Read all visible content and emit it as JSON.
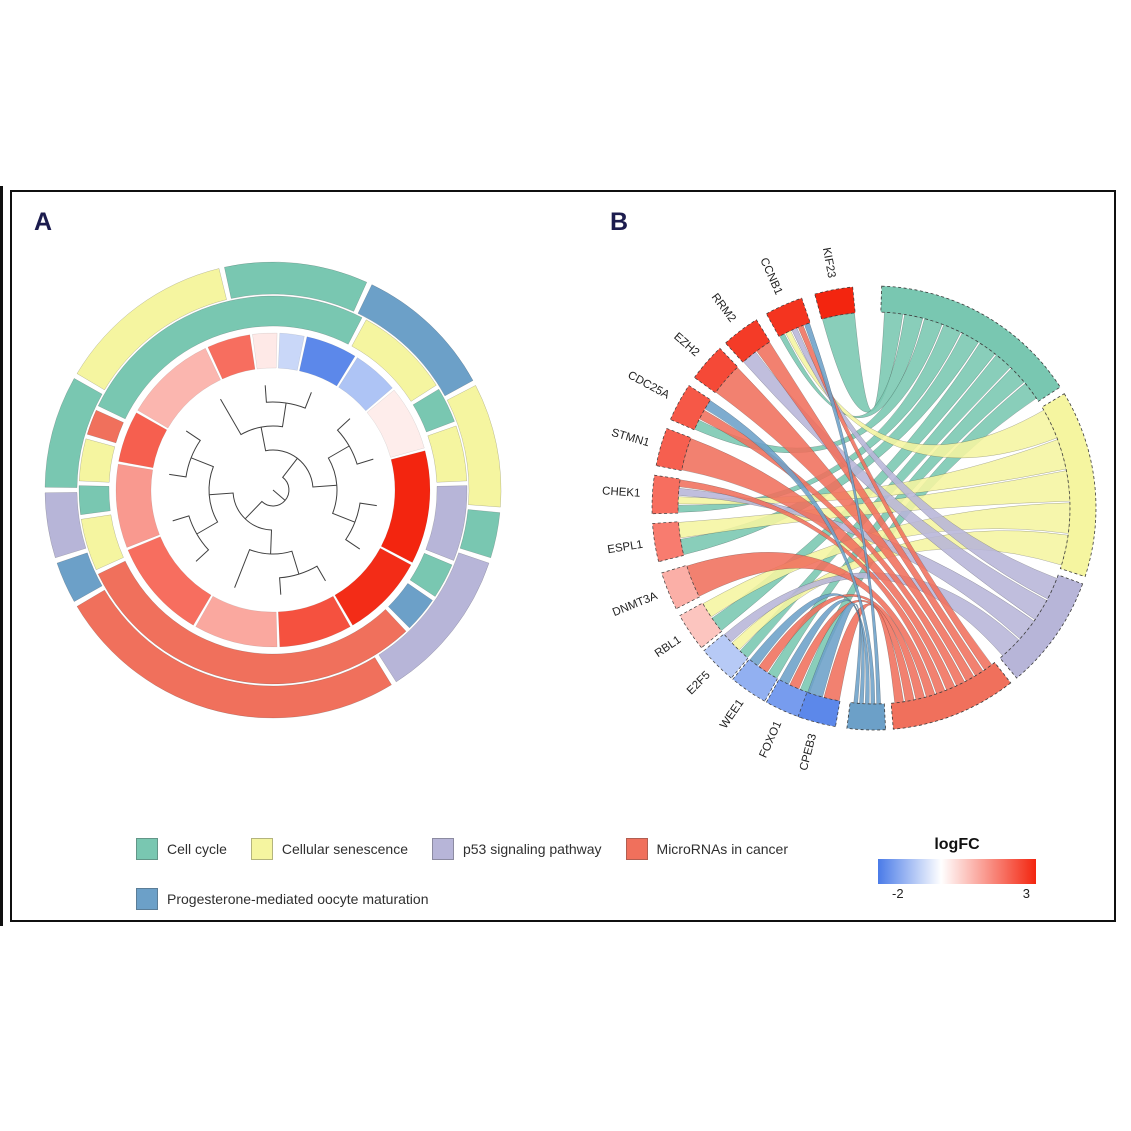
{
  "figure": {
    "panelA_label": "A",
    "panelB_label": "B"
  },
  "legend": {
    "items": [
      {
        "key": "cell_cycle",
        "label": "Cell cycle",
        "color": "#79C7B1"
      },
      {
        "key": "senescence",
        "label": "Cellular senescence",
        "color": "#F5F5A0"
      },
      {
        "key": "p53",
        "label": "p53 signaling pathway",
        "color": "#B7B5D8"
      },
      {
        "key": "mirna",
        "label": "MicroRNAs in cancer",
        "color": "#F0705C"
      },
      {
        "key": "progesterone",
        "label": "Progesterone-mediated oocyte maturation",
        "color": "#6CA0C8"
      }
    ]
  },
  "colorbar": {
    "title": "logFC",
    "min": -2,
    "max": 3,
    "min_label": "-2",
    "max_label": "3",
    "colors": [
      "#4A7BE8",
      "#FFFFFF",
      "#F3250F"
    ],
    "white_stop_pct": 40
  },
  "chart_data": [
    {
      "type": "circular-dendrogram-heatmap",
      "panel": "A",
      "rings": {
        "outer": [
          {
            "start": 347,
            "end": 385,
            "pathway": "cell_cycle"
          },
          {
            "start": 25,
            "end": 62,
            "pathway": "progesterone"
          },
          {
            "start": 62,
            "end": 95,
            "pathway": "senescence"
          },
          {
            "start": 95,
            "end": 108,
            "pathway": "cell_cycle"
          },
          {
            "start": 108,
            "end": 148,
            "pathway": "p53"
          },
          {
            "start": 148,
            "end": 240,
            "pathway": "mirna"
          },
          {
            "start": 240,
            "end": 252,
            "pathway": "progesterone"
          },
          {
            "start": 252,
            "end": 270,
            "pathway": "p53"
          },
          {
            "start": 270,
            "end": 300,
            "pathway": "cell_cycle"
          },
          {
            "start": 300,
            "end": 347,
            "pathway": "senescence"
          }
        ],
        "middle": [
          {
            "start": 295,
            "end": 388,
            "pathway": "cell_cycle"
          },
          {
            "start": 28,
            "end": 58,
            "pathway": "senescence"
          },
          {
            "start": 58,
            "end": 70,
            "pathway": "cell_cycle"
          },
          {
            "start": 70,
            "end": 88,
            "pathway": "senescence"
          },
          {
            "start": 88,
            "end": 112,
            "pathway": "p53"
          },
          {
            "start": 112,
            "end": 124,
            "pathway": "cell_cycle"
          },
          {
            "start": 124,
            "end": 136,
            "pathway": "progesterone"
          },
          {
            "start": 136,
            "end": 245,
            "pathway": "mirna"
          },
          {
            "start": 245,
            "end": 262,
            "pathway": "senescence"
          },
          {
            "start": 262,
            "end": 272,
            "pathway": "cell_cycle"
          },
          {
            "start": 272,
            "end": 286,
            "pathway": "senescence"
          },
          {
            "start": 286,
            "end": 295,
            "pathway": "mirna"
          }
        ],
        "inner_logfc": [
          {
            "start": 2,
            "end": 12,
            "logfc": -0.6
          },
          {
            "start": 12,
            "end": 32,
            "logfc": -1.8
          },
          {
            "start": 32,
            "end": 50,
            "logfc": -0.9
          },
          {
            "start": 50,
            "end": 75,
            "logfc": 0.25
          },
          {
            "start": 75,
            "end": 118,
            "logfc": 3.0
          },
          {
            "start": 118,
            "end": 150,
            "logfc": 2.9
          },
          {
            "start": 150,
            "end": 178,
            "logfc": 2.4
          },
          {
            "start": 178,
            "end": 210,
            "logfc": 1.2
          },
          {
            "start": 210,
            "end": 248,
            "logfc": 2.0
          },
          {
            "start": 248,
            "end": 280,
            "logfc": 1.4
          },
          {
            "start": 280,
            "end": 300,
            "logfc": 2.2
          },
          {
            "start": 300,
            "end": 335,
            "logfc": 1.0
          },
          {
            "start": 335,
            "end": 352,
            "logfc": 2.0
          },
          {
            "start": 352,
            "end": 362,
            "logfc": 0.3
          }
        ]
      },
      "dendrogram": {
        "leaves": 14,
        "tree": [
          [
            [
              0,
              [
                1,
                2
              ]
            ],
            [
              [
                3,
                4
              ],
              [
                5,
                6
              ]
            ]
          ],
          [
            [
              [
                7,
                8
              ],
              9
            ],
            [
              [
                10,
                11
              ],
              [
                12,
                13
              ]
            ]
          ]
        ]
      }
    },
    {
      "type": "chord",
      "panel": "B",
      "pathway_arcs": [
        {
          "key": "cell_cycle",
          "start": 2,
          "end": 57
        },
        {
          "key": "senescence",
          "start": 59,
          "end": 108
        },
        {
          "key": "p53",
          "start": 110,
          "end": 140
        },
        {
          "key": "mirna",
          "start": 142,
          "end": 175
        },
        {
          "key": "progesterone",
          "start": 177,
          "end": 187
        }
      ],
      "genes": [
        {
          "name": "KIF23",
          "logfc": 3.0,
          "angle": 349.5,
          "pathways": [
            "cell_cycle"
          ]
        },
        {
          "name": "CCNB1",
          "logfc": 2.8,
          "angle": 336,
          "pathways": [
            "cell_cycle",
            "senescence",
            "p53",
            "mirna",
            "progesterone"
          ]
        },
        {
          "name": "RRM2",
          "logfc": 2.7,
          "angle": 323,
          "pathways": [
            "p53",
            "mirna"
          ]
        },
        {
          "name": "EZH2",
          "logfc": 2.5,
          "angle": 311,
          "pathways": [
            "mirna"
          ]
        },
        {
          "name": "CDC25A",
          "logfc": 2.3,
          "angle": 298.5,
          "pathways": [
            "cell_cycle",
            "mirna",
            "progesterone"
          ]
        },
        {
          "name": "STMN1",
          "logfc": 2.2,
          "angle": 286,
          "pathways": [
            "mirna"
          ]
        },
        {
          "name": "CHEK1",
          "logfc": 2.0,
          "angle": 273.5,
          "pathways": [
            "cell_cycle",
            "senescence",
            "p53",
            "mirna"
          ]
        },
        {
          "name": "ESPL1",
          "logfc": 1.8,
          "angle": 261,
          "pathways": [
            "cell_cycle",
            "senescence"
          ]
        },
        {
          "name": "DNMT3A",
          "logfc": 1.1,
          "angle": 248,
          "pathways": [
            "mirna"
          ]
        },
        {
          "name": "RBL1",
          "logfc": 0.8,
          "angle": 236,
          "pathways": [
            "cell_cycle",
            "senescence"
          ]
        },
        {
          "name": "E2F5",
          "logfc": -0.8,
          "angle": 225,
          "pathways": [
            "cell_cycle",
            "senescence",
            "p53"
          ]
        },
        {
          "name": "WEE1",
          "logfc": -1.2,
          "angle": 214.5,
          "pathways": [
            "cell_cycle",
            "mirna",
            "progesterone"
          ]
        },
        {
          "name": "FOXO1",
          "logfc": -1.5,
          "angle": 204,
          "pathways": [
            "cell_cycle",
            "mirna",
            "progesterone"
          ]
        },
        {
          "name": "CPEB3",
          "logfc": -1.8,
          "angle": 195,
          "pathways": [
            "mirna",
            "progesterone"
          ]
        }
      ]
    }
  ]
}
